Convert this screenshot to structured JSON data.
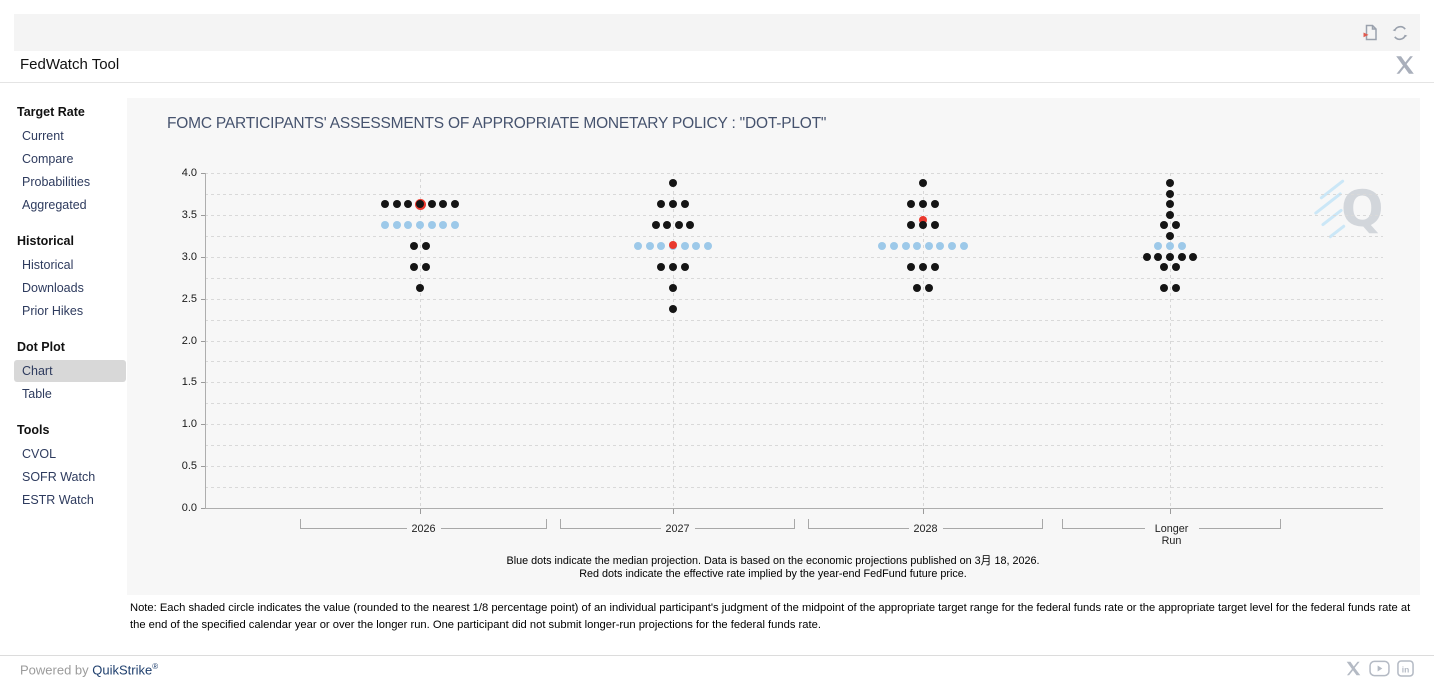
{
  "header": {
    "title": "FedWatch Tool"
  },
  "toolbar": {
    "icons": [
      "export-report-icon",
      "refresh-icon"
    ]
  },
  "sidebar": {
    "sections": [
      {
        "header": "Target Rate",
        "items": [
          {
            "label": "Current",
            "selected": false
          },
          {
            "label": "Compare",
            "selected": false
          },
          {
            "label": "Probabilities",
            "selected": false
          },
          {
            "label": "Aggregated",
            "selected": false
          }
        ]
      },
      {
        "header": "Historical",
        "items": [
          {
            "label": "Historical",
            "selected": false
          },
          {
            "label": "Downloads",
            "selected": false
          },
          {
            "label": "Prior Hikes",
            "selected": false
          }
        ]
      },
      {
        "header": "Dot Plot",
        "items": [
          {
            "label": "Chart",
            "selected": true
          },
          {
            "label": "Table",
            "selected": false
          }
        ]
      },
      {
        "header": "Tools",
        "items": [
          {
            "label": "CVOL",
            "selected": false
          },
          {
            "label": "SOFR Watch",
            "selected": false
          },
          {
            "label": "ESTR Watch",
            "selected": false
          }
        ]
      }
    ]
  },
  "chart_data": {
    "type": "scatter",
    "title": "FOMC PARTICIPANTS' ASSESSMENTS OF APPROPRIATE MONETARY POLICY : \"DOT-PLOT\"",
    "ylim": [
      0.0,
      4.0
    ],
    "yticks": [
      0.0,
      0.5,
      1.0,
      1.5,
      2.0,
      2.5,
      3.0,
      3.5,
      4.0
    ],
    "grid": "dashed horizontal every 0.25, dashed vertical at group centers",
    "legend_note_blue": "Blue dots indicate the median projection. Data is based on the economic projections published on 3月 18, 2026.",
    "legend_note_red": "Red dots indicate the effective rate implied by the year-end FedFund future price.",
    "dot_colors": {
      "participant": "#151515",
      "median": "#9dc9e9",
      "fedfund": "#ea392e"
    },
    "groups": [
      {
        "label": "2026",
        "dots": [
          {
            "value": 3.625,
            "count": 7,
            "color": "black"
          },
          {
            "value": 3.375,
            "count": 7,
            "color": "blue"
          },
          {
            "value": 3.125,
            "count": 2,
            "color": "black"
          },
          {
            "value": 2.875,
            "count": 2,
            "color": "black"
          },
          {
            "value": 2.625,
            "count": 1,
            "color": "black"
          }
        ],
        "red_dot": {
          "value": 3.625,
          "layer": "ring"
        }
      },
      {
        "label": "2027",
        "dots": [
          {
            "value": 3.875,
            "count": 1,
            "color": "black"
          },
          {
            "value": 3.625,
            "count": 3,
            "color": "black"
          },
          {
            "value": 3.375,
            "count": 4,
            "color": "black"
          },
          {
            "value": 3.125,
            "count": 7,
            "color": "blue"
          },
          {
            "value": 2.875,
            "count": 3,
            "color": "black"
          },
          {
            "value": 2.625,
            "count": 1,
            "color": "black"
          },
          {
            "value": 2.375,
            "count": 1,
            "color": "black"
          }
        ],
        "red_dot": {
          "value": 3.14,
          "layer": "front"
        }
      },
      {
        "label": "2028",
        "dots": [
          {
            "value": 3.875,
            "count": 1,
            "color": "black"
          },
          {
            "value": 3.625,
            "count": 3,
            "color": "black"
          },
          {
            "value": 3.375,
            "count": 3,
            "color": "black"
          },
          {
            "value": 3.125,
            "count": 8,
            "color": "blue"
          },
          {
            "value": 2.875,
            "count": 3,
            "color": "black"
          },
          {
            "value": 2.625,
            "count": 2,
            "color": "black"
          }
        ],
        "red_dot": {
          "value": 3.4375,
          "layer": "back"
        }
      },
      {
        "label": "Longer Run",
        "dots": [
          {
            "value": 3.875,
            "count": 1,
            "color": "black"
          },
          {
            "value": 3.75,
            "count": 1,
            "color": "black"
          },
          {
            "value": 3.625,
            "count": 1,
            "color": "black"
          },
          {
            "value": 3.5,
            "count": 1,
            "color": "black"
          },
          {
            "value": 3.375,
            "count": 2,
            "color": "black"
          },
          {
            "value": 3.25,
            "count": 1,
            "color": "black"
          },
          {
            "value": 3.125,
            "count": 3,
            "color": "blue"
          },
          {
            "value": 3.0,
            "count": 5,
            "color": "black"
          },
          {
            "value": 2.875,
            "count": 2,
            "color": "black"
          },
          {
            "value": 2.625,
            "count": 2,
            "color": "black"
          }
        ],
        "red_dot": null
      }
    ],
    "watermark_letter": "Q"
  },
  "note": "Note: Each shaded circle indicates the value (rounded to the nearest 1/8 percentage point) of an individual participant's judgment of the midpoint of the appropriate target range for the federal funds rate or the appropriate target level for the federal funds rate at the end of the specified calendar year or over the longer run. One participant did not submit longer-run projections for the federal funds rate.",
  "footer": {
    "powered_by": "Powered by",
    "brand": "QuikStrike",
    "registered": "®",
    "icons": [
      "x-logo",
      "youtube",
      "linkedin"
    ]
  }
}
